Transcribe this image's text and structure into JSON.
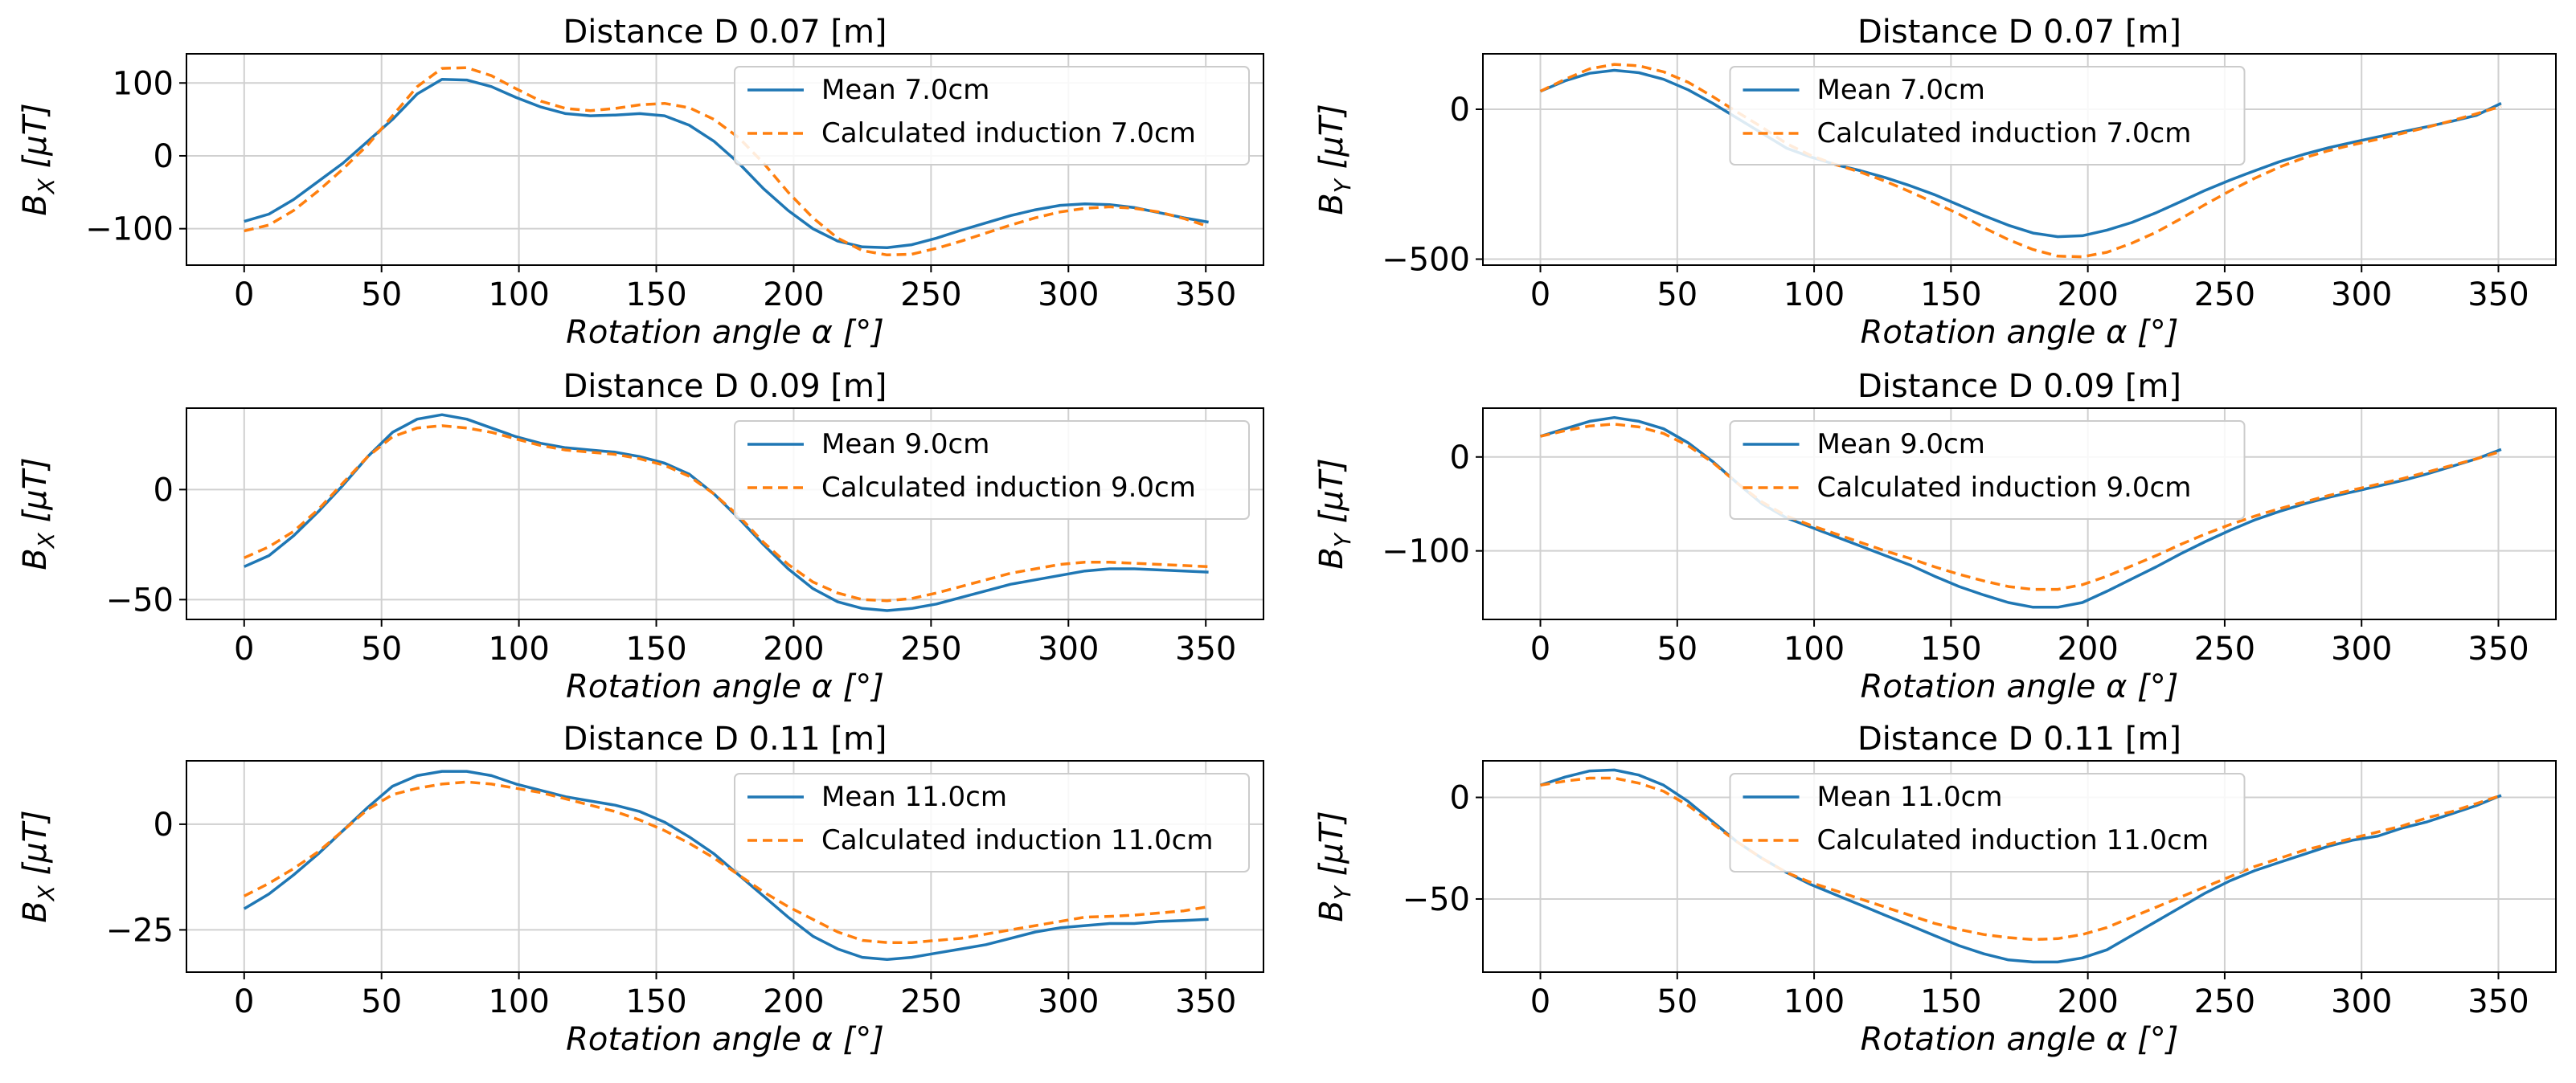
{
  "colors": {
    "mean": "#1f77b4",
    "calc": "#ff7f0e"
  },
  "chart_data": [
    {
      "type": "line",
      "title": "Distance D 0.07 [m]",
      "xlabel": "Rotation angle α [°]",
      "ylabel": "B_X [µT]",
      "ylabel_main": "B",
      "ylabel_sub": "X",
      "ylabel_rest": " [µT]",
      "xlim": [
        -21,
        371
      ],
      "ylim": [
        -150,
        140
      ],
      "xticks": [
        0,
        50,
        100,
        150,
        200,
        250,
        300,
        350
      ],
      "yticks": [
        -100,
        0,
        100
      ],
      "ytick_labels": [
        "−100",
        "0",
        "100"
      ],
      "legend_loc": "upper-right",
      "x": [
        0,
        9,
        18,
        27,
        36,
        45,
        54,
        63,
        72,
        81,
        90,
        99,
        108,
        117,
        126,
        135,
        144,
        153,
        162,
        171,
        180,
        189,
        198,
        207,
        216,
        225,
        234,
        243,
        252,
        261,
        270,
        279,
        288,
        297,
        306,
        315,
        324,
        333,
        342,
        351
      ],
      "series": [
        {
          "name": "Mean 7.0cm",
          "values": [
            -90,
            -80,
            -60,
            -35,
            -10,
            20,
            50,
            85,
            105,
            104,
            95,
            80,
            67,
            58,
            55,
            56,
            58,
            55,
            42,
            20,
            -10,
            -45,
            -75,
            -100,
            -117,
            -125,
            -126,
            -122,
            -113,
            -102,
            -92,
            -82,
            -74,
            -68,
            -66,
            -67,
            -71,
            -78,
            -85,
            -91
          ]
        },
        {
          "name": "Calculated induction 7.0cm",
          "values": [
            -103,
            -95,
            -75,
            -48,
            -18,
            15,
            55,
            95,
            120,
            121,
            110,
            92,
            75,
            65,
            62,
            65,
            70,
            72,
            66,
            50,
            25,
            -10,
            -50,
            -85,
            -113,
            -130,
            -136,
            -135,
            -127,
            -117,
            -106,
            -95,
            -85,
            -77,
            -72,
            -70,
            -72,
            -77,
            -86,
            -97
          ]
        }
      ]
    },
    {
      "type": "line",
      "title": "Distance D 0.07 [m]",
      "xlabel": "Rotation angle α [°]",
      "ylabel": "B_Y [µT]",
      "ylabel_main": "B",
      "ylabel_sub": "Y",
      "ylabel_rest": " [µT]",
      "xlim": [
        -21,
        371
      ],
      "ylim": [
        -520,
        185
      ],
      "xticks": [
        0,
        50,
        100,
        150,
        200,
        250,
        300,
        350
      ],
      "yticks": [
        -500,
        0
      ],
      "ytick_labels": [
        "−500",
        "0"
      ],
      "legend_loc": "upper-center",
      "x": [
        0,
        9,
        18,
        27,
        36,
        45,
        54,
        63,
        72,
        81,
        90,
        99,
        108,
        117,
        126,
        135,
        144,
        153,
        162,
        171,
        180,
        189,
        198,
        207,
        216,
        225,
        234,
        243,
        252,
        261,
        270,
        279,
        288,
        297,
        306,
        315,
        324,
        333,
        342,
        351
      ],
      "series": [
        {
          "name": "Mean 7.0cm",
          "values": [
            60,
            95,
            120,
            130,
            122,
            100,
            65,
            20,
            -30,
            -80,
            -130,
            -160,
            -185,
            -205,
            -228,
            -255,
            -285,
            -320,
            -355,
            -387,
            -413,
            -425,
            -422,
            -403,
            -378,
            -345,
            -308,
            -270,
            -236,
            -205,
            -175,
            -150,
            -128,
            -110,
            -92,
            -75,
            -58,
            -40,
            -20,
            20
          ]
        },
        {
          "name": "Calculated induction 7.0cm",
          "values": [
            60,
            100,
            135,
            150,
            145,
            125,
            90,
            42,
            -10,
            -60,
            -115,
            -155,
            -185,
            -210,
            -240,
            -275,
            -312,
            -350,
            -395,
            -435,
            -468,
            -490,
            -492,
            -477,
            -447,
            -410,
            -365,
            -317,
            -272,
            -230,
            -193,
            -162,
            -138,
            -118,
            -100,
            -80,
            -60,
            -38,
            -15,
            10
          ]
        }
      ]
    },
    {
      "type": "line",
      "title": "Distance D 0.09 [m]",
      "xlabel": "Rotation angle α [°]",
      "ylabel": "B_X [µT]",
      "ylabel_main": "B",
      "ylabel_sub": "X",
      "ylabel_rest": " [µT]",
      "xlim": [
        -21,
        371
      ],
      "ylim": [
        -59,
        37
      ],
      "xticks": [
        0,
        50,
        100,
        150,
        200,
        250,
        300,
        350
      ],
      "yticks": [
        -50,
        0
      ],
      "ytick_labels": [
        "−50",
        "0"
      ],
      "legend_loc": "upper-right",
      "x": [
        0,
        9,
        18,
        27,
        36,
        45,
        54,
        63,
        72,
        81,
        90,
        99,
        108,
        117,
        126,
        135,
        144,
        153,
        162,
        171,
        180,
        189,
        198,
        207,
        216,
        225,
        234,
        243,
        252,
        261,
        270,
        279,
        288,
        297,
        306,
        315,
        324,
        333,
        342,
        351
      ],
      "series": [
        {
          "name": "Mean 9.0cm",
          "values": [
            -35,
            -30,
            -21,
            -10,
            2,
            15,
            26,
            32,
            34,
            32,
            28,
            24,
            21,
            19,
            18,
            17,
            15,
            12,
            7,
            -2,
            -13,
            -25,
            -36,
            -45,
            -51,
            -54,
            -55,
            -54,
            -52,
            -49,
            -46,
            -43,
            -41,
            -39,
            -37,
            -36,
            -36,
            -36.5,
            -37,
            -37.5
          ]
        },
        {
          "name": "Calculated induction 9.0cm",
          "values": [
            -31,
            -26,
            -19,
            -9,
            3,
            15,
            24,
            28,
            29,
            28,
            26,
            23,
            20,
            18,
            17,
            16,
            14,
            11,
            6,
            -2,
            -12,
            -24,
            -34,
            -42,
            -47,
            -50,
            -50.5,
            -49.5,
            -47,
            -44,
            -41,
            -38,
            -36,
            -34,
            -33,
            -33,
            -33.5,
            -34,
            -34.5,
            -35
          ]
        }
      ]
    },
    {
      "type": "line",
      "title": "Distance D 0.09 [m]",
      "xlabel": "Rotation angle α [°]",
      "ylabel": "B_Y [µT]",
      "ylabel_main": "B",
      "ylabel_sub": "Y",
      "ylabel_rest": " [µT]",
      "xlim": [
        -21,
        371
      ],
      "ylim": [
        -173,
        52
      ],
      "xticks": [
        0,
        50,
        100,
        150,
        200,
        250,
        300,
        350
      ],
      "yticks": [
        -100,
        0
      ],
      "ytick_labels": [
        "−100",
        "0"
      ],
      "legend_loc": "upper-center",
      "x": [
        0,
        9,
        18,
        27,
        36,
        45,
        54,
        63,
        72,
        81,
        90,
        99,
        108,
        117,
        126,
        135,
        144,
        153,
        162,
        171,
        180,
        189,
        198,
        207,
        216,
        225,
        234,
        243,
        252,
        261,
        270,
        279,
        288,
        297,
        306,
        315,
        324,
        333,
        342,
        351
      ],
      "series": [
        {
          "name": "Mean 9.0cm",
          "values": [
            22,
            30,
            38,
            42,
            38,
            30,
            15,
            -5,
            -28,
            -50,
            -65,
            -75,
            -85,
            -95,
            -105,
            -115,
            -127,
            -138,
            -147,
            -155,
            -160,
            -160,
            -155,
            -143,
            -130,
            -117,
            -103,
            -90,
            -78,
            -67,
            -58,
            -50,
            -43,
            -37,
            -31,
            -25,
            -18,
            -10,
            -2,
            8
          ]
        },
        {
          "name": "Calculated induction 9.0cm",
          "values": [
            22,
            28,
            33,
            35,
            32,
            25,
            12,
            -6,
            -28,
            -48,
            -63,
            -73,
            -82,
            -91,
            -100,
            -108,
            -117,
            -125,
            -132,
            -138,
            -141,
            -141,
            -136,
            -127,
            -116,
            -105,
            -93,
            -82,
            -72,
            -63,
            -55,
            -48,
            -41,
            -35,
            -29,
            -23,
            -16,
            -9,
            -2,
            6
          ]
        }
      ]
    },
    {
      "type": "line",
      "title": "Distance D 0.11 [m]",
      "xlabel": "Rotation angle α [°]",
      "ylabel": "B_X [µT]",
      "ylabel_main": "B",
      "ylabel_sub": "X",
      "ylabel_rest": " [µT]",
      "xlim": [
        -21,
        371
      ],
      "ylim": [
        -35,
        15
      ],
      "xticks": [
        0,
        50,
        100,
        150,
        200,
        250,
        300,
        350
      ],
      "yticks": [
        -25,
        0
      ],
      "ytick_labels": [
        "−25",
        "0"
      ],
      "legend_loc": "upper-right",
      "x": [
        0,
        9,
        18,
        27,
        36,
        45,
        54,
        63,
        72,
        81,
        90,
        99,
        108,
        117,
        126,
        135,
        144,
        153,
        162,
        171,
        180,
        189,
        198,
        207,
        216,
        225,
        234,
        243,
        252,
        261,
        270,
        279,
        288,
        297,
        306,
        315,
        324,
        333,
        342,
        351
      ],
      "series": [
        {
          "name": "Mean 11.0cm",
          "values": [
            -20,
            -16.5,
            -12,
            -7,
            -1.5,
            4,
            9,
            11.5,
            12.5,
            12.5,
            11.5,
            9.5,
            8,
            6.5,
            5.5,
            4.5,
            3,
            0.5,
            -3,
            -7,
            -12,
            -17,
            -22,
            -26.5,
            -29.5,
            -31.5,
            -32,
            -31.5,
            -30.5,
            -29.5,
            -28.5,
            -27,
            -25.5,
            -24.5,
            -24,
            -23.5,
            -23.5,
            -23,
            -22.8,
            -22.5
          ]
        },
        {
          "name": "Calculated induction 11.0cm",
          "values": [
            -17,
            -14,
            -10.5,
            -6.5,
            -1.5,
            3.5,
            7,
            8.5,
            9.5,
            10,
            9.5,
            8.5,
            7.5,
            6,
            4.5,
            3,
            1,
            -1.5,
            -4.5,
            -8,
            -12,
            -16,
            -19.5,
            -22.5,
            -25.5,
            -27.5,
            -28,
            -28,
            -27.5,
            -27,
            -26,
            -25,
            -24,
            -23,
            -22,
            -21.8,
            -21.5,
            -21,
            -20.5,
            -19.5
          ]
        }
      ]
    },
    {
      "type": "line",
      "title": "Distance D 0.11 [m]",
      "xlabel": "Rotation angle α [°]",
      "ylabel": "B_Y [µT]",
      "ylabel_main": "B",
      "ylabel_sub": "Y",
      "ylabel_rest": " [µT]",
      "xlim": [
        -21,
        371
      ],
      "ylim": [
        -86,
        18
      ],
      "xticks": [
        0,
        50,
        100,
        150,
        200,
        250,
        300,
        350
      ],
      "yticks": [
        -50,
        0
      ],
      "ytick_labels": [
        "−50",
        "0"
      ],
      "legend_loc": "upper-center",
      "x": [
        0,
        9,
        18,
        27,
        36,
        45,
        54,
        63,
        72,
        81,
        90,
        99,
        108,
        117,
        126,
        135,
        144,
        153,
        162,
        171,
        180,
        189,
        198,
        207,
        216,
        225,
        234,
        243,
        252,
        261,
        270,
        279,
        288,
        297,
        306,
        315,
        324,
        333,
        342,
        351
      ],
      "series": [
        {
          "name": "Mean 11.0cm",
          "values": [
            6,
            10,
            13,
            13.5,
            11,
            6,
            -2,
            -12,
            -22,
            -30,
            -37,
            -43,
            -48,
            -53,
            -58,
            -63,
            -68,
            -73,
            -77,
            -80,
            -81,
            -81,
            -79,
            -75,
            -68,
            -61,
            -54,
            -47,
            -41,
            -36,
            -32,
            -28,
            -24,
            -21,
            -19,
            -15,
            -12,
            -8,
            -4,
            1
          ]
        },
        {
          "name": "Calculated induction 11.0cm",
          "values": [
            6,
            8,
            9.5,
            9.5,
            7,
            3,
            -4,
            -13,
            -22,
            -30,
            -37,
            -42,
            -46,
            -50,
            -54,
            -58,
            -62,
            -65,
            -67.5,
            -69,
            -70,
            -69.5,
            -67.5,
            -64,
            -59,
            -54,
            -49,
            -44,
            -39,
            -34,
            -30,
            -26,
            -23,
            -20,
            -17,
            -14,
            -10,
            -7,
            -3,
            1
          ]
        }
      ]
    }
  ]
}
